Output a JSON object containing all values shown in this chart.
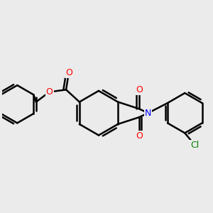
{
  "background_color": "#ebebeb",
  "bond_color": "#000000",
  "bond_width": 1.8,
  "atom_colors": {
    "O": "#ff0000",
    "N": "#0000ff",
    "Cl": "#008000",
    "C": "#000000"
  },
  "font_size": 8,
  "figsize": [
    3.0,
    3.0
  ],
  "dpi": 100
}
